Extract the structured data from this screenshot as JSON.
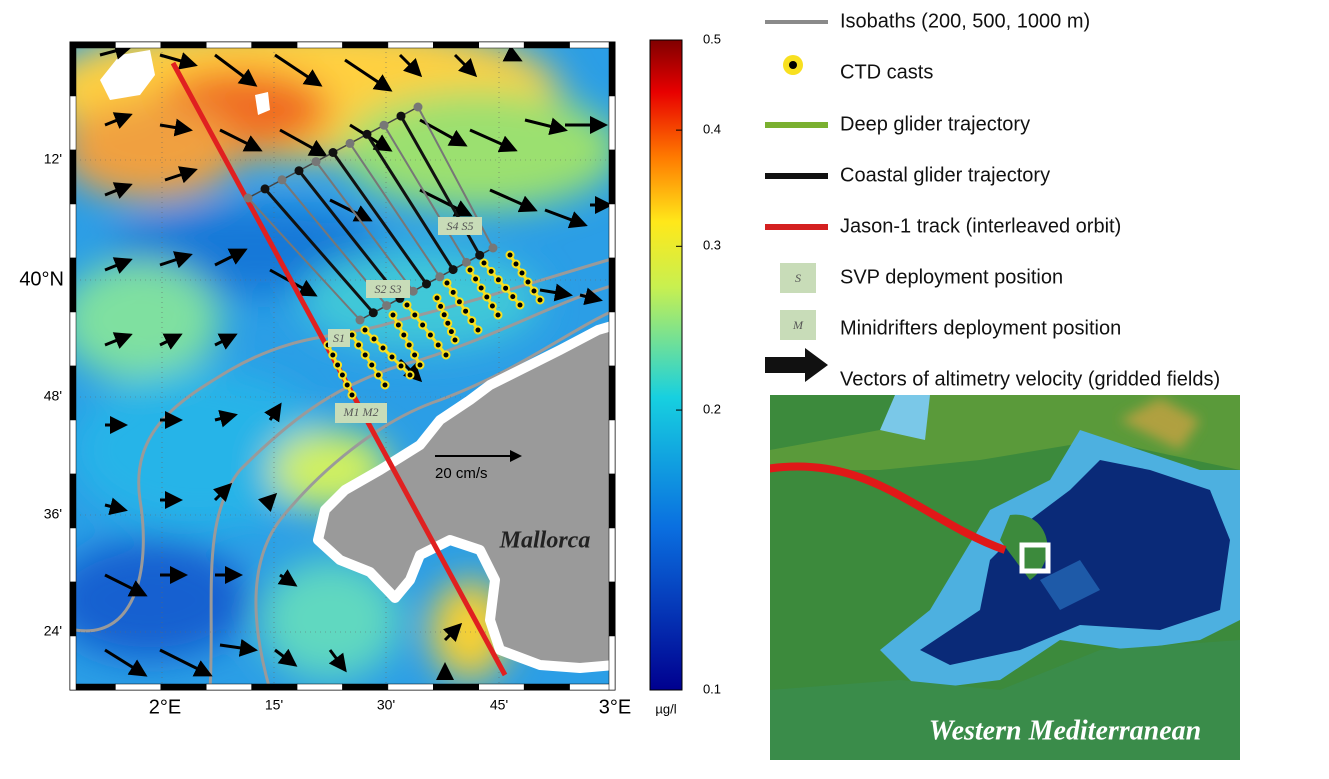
{
  "axes": {
    "y_labels": [
      "12'",
      "40°N",
      "48'",
      "36'",
      "24'"
    ],
    "x_labels": [
      "2°E",
      "15'",
      "30'",
      "45'",
      "3°E"
    ]
  },
  "colorbar": {
    "unit": "µg/l",
    "lim": [
      0.1,
      0.5
    ],
    "ticks": [
      0.1,
      0.2,
      0.3,
      0.4,
      0.5
    ],
    "scale": "log"
  },
  "map_labels": {
    "s4s5": "S4 S5",
    "s2s3": "S2 S3",
    "s1": "S1",
    "m1m2": "M1 M2",
    "scale_arrow": "20 cm/s",
    "island": "Mallorca"
  },
  "legend": [
    {
      "label": "Isobaths (200, 500, 1000 m)"
    },
    {
      "label": "CTD casts"
    },
    {
      "label": "Deep glider trajectory"
    },
    {
      "label": "Coastal glider trajectory"
    },
    {
      "label": "Jason-1 track (interleaved orbit)"
    },
    {
      "icon": "S",
      "label": "SVP deployment position"
    },
    {
      "icon": "M",
      "label": "Minidrifters deployment position"
    },
    {
      "label": "Vectors of altimetry velocity (gridded fields)"
    }
  ],
  "inset": {
    "title": "Western Mediterranean"
  }
}
